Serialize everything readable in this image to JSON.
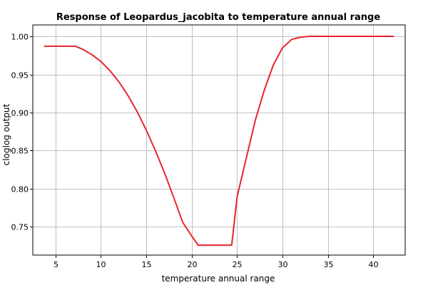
{
  "chart_data": {
    "type": "line",
    "title": "Response of Leopardus_jacobita to temperature annual range",
    "xlabel": "temperature annual range",
    "ylabel": "cloglog output",
    "xlim": [
      2.5,
      43.5
    ],
    "ylim": [
      0.713,
      1.015
    ],
    "xticks": [
      5,
      10,
      15,
      20,
      25,
      30,
      35,
      40
    ],
    "xtick_labels": [
      "5",
      "10",
      "15",
      "20",
      "25",
      "30",
      "35",
      "40"
    ],
    "yticks": [
      0.75,
      0.8,
      0.85,
      0.9,
      0.95,
      1.0
    ],
    "ytick_labels": [
      "0.75",
      "0.80",
      "0.85",
      "0.90",
      "0.95",
      "1.00"
    ],
    "grid": true,
    "series": [
      {
        "color": "#e8262b",
        "x": [
          3.8,
          7.2,
          8.0,
          9.0,
          10.0,
          11.0,
          12.0,
          13.0,
          14.0,
          15.0,
          16.0,
          17.0,
          18.0,
          19.0,
          20.0,
          20.7,
          22.5,
          24.4,
          25.0,
          26.0,
          27.0,
          28.0,
          29.0,
          30.0,
          31.0,
          32.0,
          33.0,
          34.0,
          35.0,
          38.0,
          42.2
        ],
        "y": [
          0.987,
          0.987,
          0.983,
          0.976,
          0.967,
          0.955,
          0.94,
          0.922,
          0.901,
          0.877,
          0.85,
          0.821,
          0.789,
          0.756,
          0.738,
          0.726,
          0.726,
          0.726,
          0.79,
          0.84,
          0.89,
          0.93,
          0.963,
          0.985,
          0.996,
          0.999,
          1.0,
          1.0,
          1.0,
          1.0,
          1.0
        ]
      }
    ]
  }
}
